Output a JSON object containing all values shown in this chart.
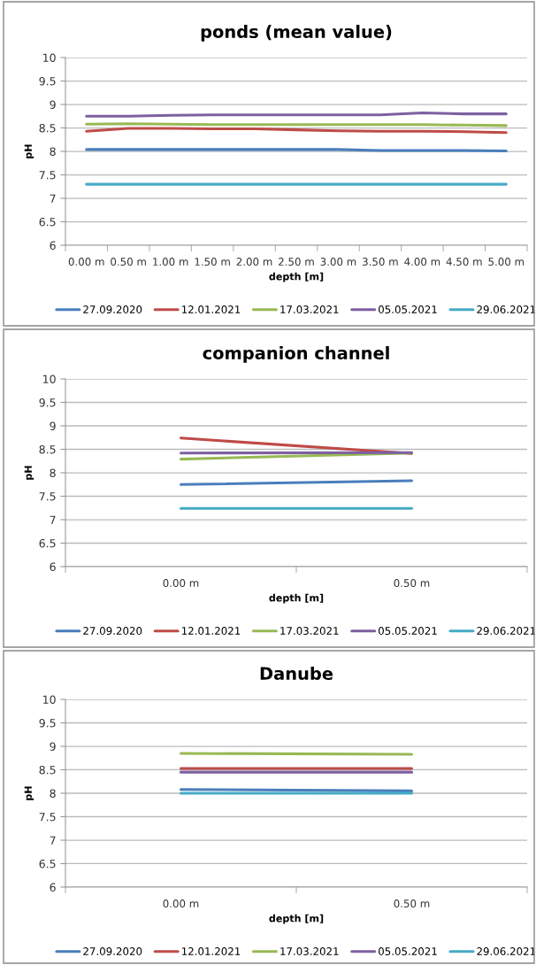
{
  "chart_data": [
    {
      "type": "line",
      "title": "ponds (mean value)",
      "xlabel": "depth [m]",
      "ylabel": "pH",
      "categories": [
        "0.00 m",
        "0.50 m",
        "1.00 m",
        "1.50 m",
        "2.00 m",
        "2.50 m",
        "3.00 m",
        "3.50 m",
        "4.00 m",
        "4.50 m",
        "5.00 m"
      ],
      "series": [
        {
          "name": "27.09.2020",
          "color": "#4a7ebb",
          "values": [
            8.04,
            8.04,
            8.04,
            8.04,
            8.04,
            8.04,
            8.04,
            8.02,
            8.02,
            8.02,
            8.01
          ]
        },
        {
          "name": "12.01.2021",
          "color": "#be4b48",
          "values": [
            8.43,
            8.49,
            8.49,
            8.48,
            8.48,
            8.46,
            8.44,
            8.43,
            8.43,
            8.42,
            8.4
          ]
        },
        {
          "name": "17.03.2021",
          "color": "#98b954",
          "values": [
            8.58,
            8.59,
            8.58,
            8.57,
            8.57,
            8.57,
            8.57,
            8.57,
            8.57,
            8.56,
            8.55
          ]
        },
        {
          "name": "05.05.2021",
          "color": "#7d60a0",
          "values": [
            8.75,
            8.75,
            8.77,
            8.78,
            8.78,
            8.78,
            8.78,
            8.78,
            8.82,
            8.8,
            8.8
          ]
        },
        {
          "name": "29.06.2021",
          "color": "#46aac5",
          "values": [
            7.3,
            7.3,
            7.3,
            7.3,
            7.3,
            7.3,
            7.3,
            7.3,
            7.3,
            7.3,
            7.3
          ]
        }
      ],
      "ylim": [
        6,
        10
      ],
      "yticks": [
        6,
        6.5,
        7,
        7.5,
        8,
        8.5,
        9,
        9.5,
        10
      ],
      "grid": "y",
      "legend": "bottom",
      "marker": "none",
      "line_style": "solid"
    },
    {
      "type": "line",
      "title": "companion channel",
      "xlabel": "depth [m]",
      "ylabel": "pH",
      "categories": [
        "0.00 m",
        "0.50 m"
      ],
      "series": [
        {
          "name": "27.09.2020",
          "color": "#4a7ebb",
          "values": [
            7.75,
            7.83
          ]
        },
        {
          "name": "12.01.2021",
          "color": "#be4b48",
          "values": [
            8.74,
            8.41
          ]
        },
        {
          "name": "17.03.2021",
          "color": "#98b954",
          "values": [
            8.29,
            8.42
          ]
        },
        {
          "name": "05.05.2021",
          "color": "#7d60a0",
          "values": [
            8.42,
            8.43
          ]
        },
        {
          "name": "29.06.2021",
          "color": "#46aac5",
          "values": [
            7.24,
            7.24
          ]
        }
      ],
      "ylim": [
        6,
        10
      ],
      "yticks": [
        6,
        6.5,
        7,
        7.5,
        8,
        8.5,
        9,
        9.5,
        10
      ],
      "grid": "y",
      "legend": "bottom",
      "marker": "none",
      "line_style": "solid"
    },
    {
      "type": "line",
      "title": "Danube",
      "xlabel": "depth [m]",
      "ylabel": "pH",
      "categories": [
        "0.00 m",
        "0.50 m"
      ],
      "series": [
        {
          "name": "27.09.2020",
          "color": "#4a7ebb",
          "values": [
            8.08,
            8.05
          ]
        },
        {
          "name": "12.01.2021",
          "color": "#be4b48",
          "values": [
            8.53,
            8.53
          ]
        },
        {
          "name": "17.03.2021",
          "color": "#98b954",
          "values": [
            8.85,
            8.83
          ]
        },
        {
          "name": "05.05.2021",
          "color": "#7d60a0",
          "values": [
            8.45,
            8.45
          ]
        },
        {
          "name": "29.06.2021",
          "color": "#46aac5",
          "values": [
            8.0,
            8.0
          ]
        }
      ],
      "ylim": [
        6,
        10
      ],
      "yticks": [
        6,
        6.5,
        7,
        7.5,
        8,
        8.5,
        9,
        9.5,
        10
      ],
      "grid": "y",
      "legend": "bottom",
      "marker": "none",
      "line_style": "solid"
    }
  ]
}
